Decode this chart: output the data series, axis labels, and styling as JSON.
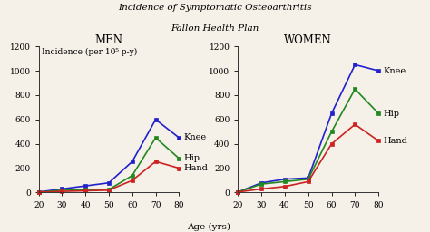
{
  "title_line1": "Incidence of Symptomatic Osteoarthritis",
  "title_line2": "Fallon Health Plan",
  "xlabel": "Age (yrs)",
  "ylabel": "Incidence (per 10⁵ p-y)",
  "age": [
    20,
    30,
    40,
    50,
    60,
    70,
    80
  ],
  "men": {
    "knee": [
      5,
      30,
      55,
      80,
      255,
      600,
      450
    ],
    "hip": [
      3,
      20,
      25,
      25,
      140,
      450,
      280
    ],
    "hand": [
      3,
      10,
      15,
      20,
      100,
      255,
      200
    ]
  },
  "women": {
    "knee": [
      5,
      80,
      110,
      120,
      650,
      1050,
      1000
    ],
    "hip": [
      5,
      70,
      90,
      110,
      500,
      850,
      650
    ],
    "hand": [
      5,
      30,
      50,
      90,
      400,
      560,
      425
    ]
  },
  "ylim": [
    0,
    1200
  ],
  "yticks": [
    0,
    200,
    400,
    600,
    800,
    1000,
    1200
  ],
  "xticks": [
    20,
    30,
    40,
    50,
    60,
    70,
    80
  ],
  "colors": {
    "knee": "#2222cc",
    "hip": "#228822",
    "hand": "#cc2222"
  },
  "bg_color": "#f5f0e8",
  "marker": "s",
  "markersize": 3,
  "linewidth": 1.2,
  "title_fontsize": 7.5,
  "panel_title_fontsize": 8.5,
  "label_fontsize": 7,
  "tick_fontsize": 6.5,
  "annotation_fontsize": 7,
  "ylabel_fontsize": 6.5
}
